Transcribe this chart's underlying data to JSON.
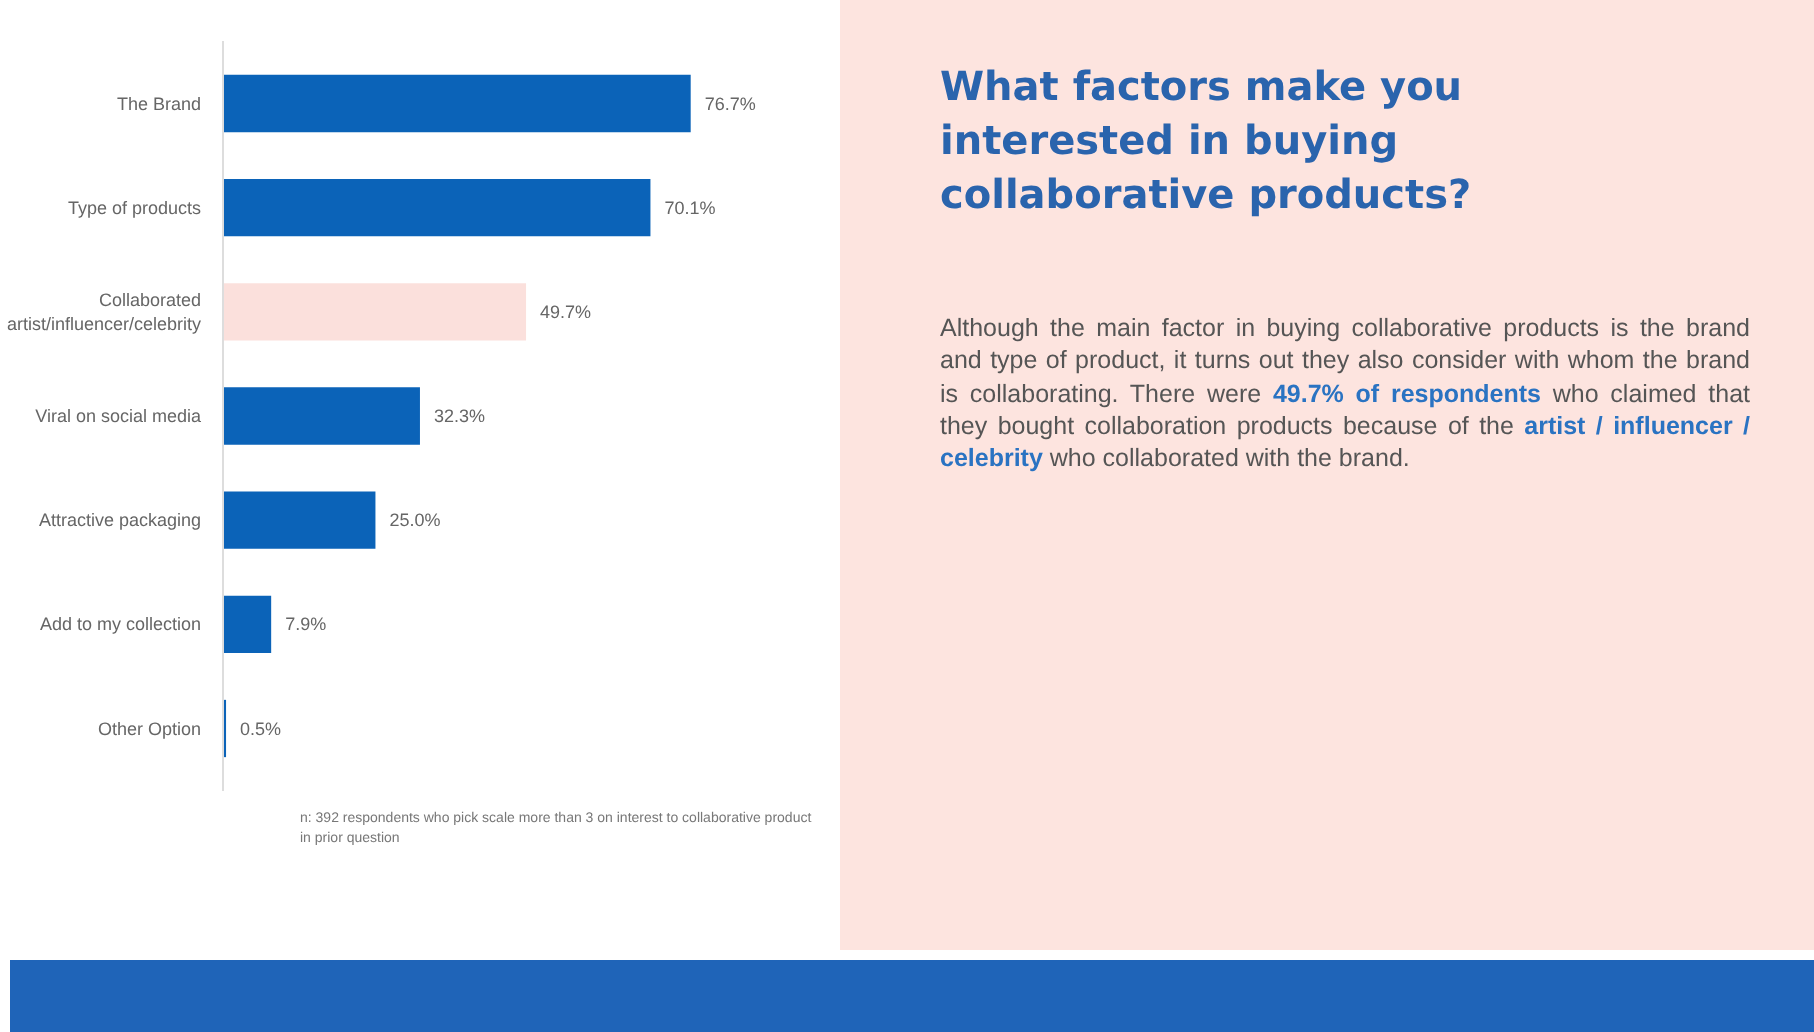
{
  "chart_data": {
    "type": "bar",
    "orientation": "horizontal",
    "title": "What factors make you interested in buying collaborative products?",
    "categories": [
      "The Brand",
      "Type of products",
      "Collaborated artist/influencer/celebrity",
      "Viral on social media",
      "Attractive packaging",
      "Add to my collection",
      "Other Option"
    ],
    "values": [
      76.7,
      70.1,
      49.7,
      32.3,
      25.0,
      7.9,
      0.5
    ],
    "colors": [
      "#0b63b8",
      "#0b63b8",
      "#fbe0dc",
      "#0b63b8",
      "#0b63b8",
      "#0b63b8",
      "#0b63b8"
    ],
    "value_labels": [
      "76.7%",
      "70.1%",
      "49.7%",
      "32.3%",
      "25.0%",
      "7.9%",
      "0.5%"
    ],
    "grid": false,
    "annotations": [
      "n: 392 respondents who pick scale more than 3 on interest to collaborative product in prior question",
      "Although the main factor in buying collaborative products is the brand and type of product, it turns out they also consider with whom the brand is collaborating. There were ",
      "49.7% of respondents",
      " who claimed that they bought collaboration products because of the ",
      "artist / influencer / celebrity",
      " who collaborated with the brand."
    ]
  }
}
